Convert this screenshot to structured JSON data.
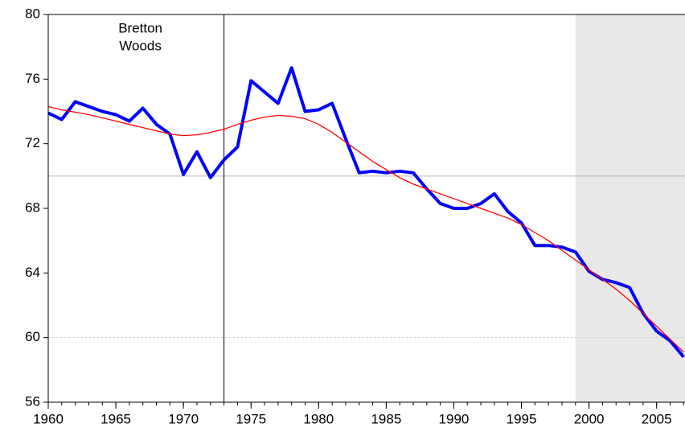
{
  "chart_data": {
    "type": "line",
    "x": [
      1960,
      1961,
      1962,
      1963,
      1964,
      1965,
      1966,
      1967,
      1968,
      1969,
      1970,
      1971,
      1972,
      1973,
      1974,
      1975,
      1976,
      1977,
      1978,
      1979,
      1980,
      1981,
      1982,
      1983,
      1984,
      1985,
      1986,
      1987,
      1988,
      1989,
      1990,
      1991,
      1992,
      1993,
      1994,
      1995,
      1996,
      1997,
      1998,
      1999,
      2000,
      2001,
      2002,
      2003,
      2004,
      2005,
      2006,
      2007
    ],
    "series": [
      {
        "color": "#0000ff",
        "width": 4,
        "values": [
          73.9,
          73.5,
          74.6,
          74.3,
          74.0,
          73.8,
          73.4,
          74.2,
          73.2,
          72.6,
          70.1,
          71.5,
          69.9,
          71.0,
          71.8,
          75.9,
          75.2,
          74.5,
          76.7,
          74.0,
          74.1,
          74.5,
          72.3,
          70.2,
          70.3,
          70.2,
          70.3,
          70.2,
          69.2,
          68.3,
          68.0,
          68.0,
          68.3,
          68.9,
          67.8,
          67.1,
          65.7,
          65.7,
          65.6,
          65.3,
          64.1,
          63.6,
          63.4,
          63.1,
          61.5,
          60.4,
          59.8,
          58.8
        ]
      },
      {
        "color": "#ff0000",
        "width": 1.3,
        "values": [
          74.3,
          74.1,
          73.95,
          73.8,
          73.6,
          73.4,
          73.2,
          73.0,
          72.8,
          72.6,
          72.5,
          72.55,
          72.7,
          72.9,
          73.2,
          73.45,
          73.65,
          73.75,
          73.7,
          73.55,
          73.2,
          72.7,
          72.1,
          71.5,
          70.9,
          70.4,
          69.9,
          69.5,
          69.2,
          68.9,
          68.6,
          68.3,
          68.0,
          67.7,
          67.4,
          67.0,
          66.5,
          66.0,
          65.4,
          64.8,
          64.2,
          63.6,
          63.0,
          62.3,
          61.5,
          60.7,
          59.9,
          59.1
        ]
      }
    ],
    "xlim": [
      1960,
      2007.1
    ],
    "xticks": [
      1960,
      1965,
      1970,
      1975,
      1980,
      1985,
      1990,
      1995,
      2000,
      2005
    ],
    "ylim": [
      56,
      80
    ],
    "yticks": [
      56,
      60,
      64,
      68,
      72,
      76,
      80
    ],
    "shade": [
      1999,
      2007.1
    ],
    "vline": 1973,
    "hlines": [
      {
        "value": 70,
        "style": "solid"
      },
      {
        "value": 60,
        "style": "dashed"
      }
    ],
    "annotation": [
      "Bretton",
      "Woods"
    ]
  }
}
